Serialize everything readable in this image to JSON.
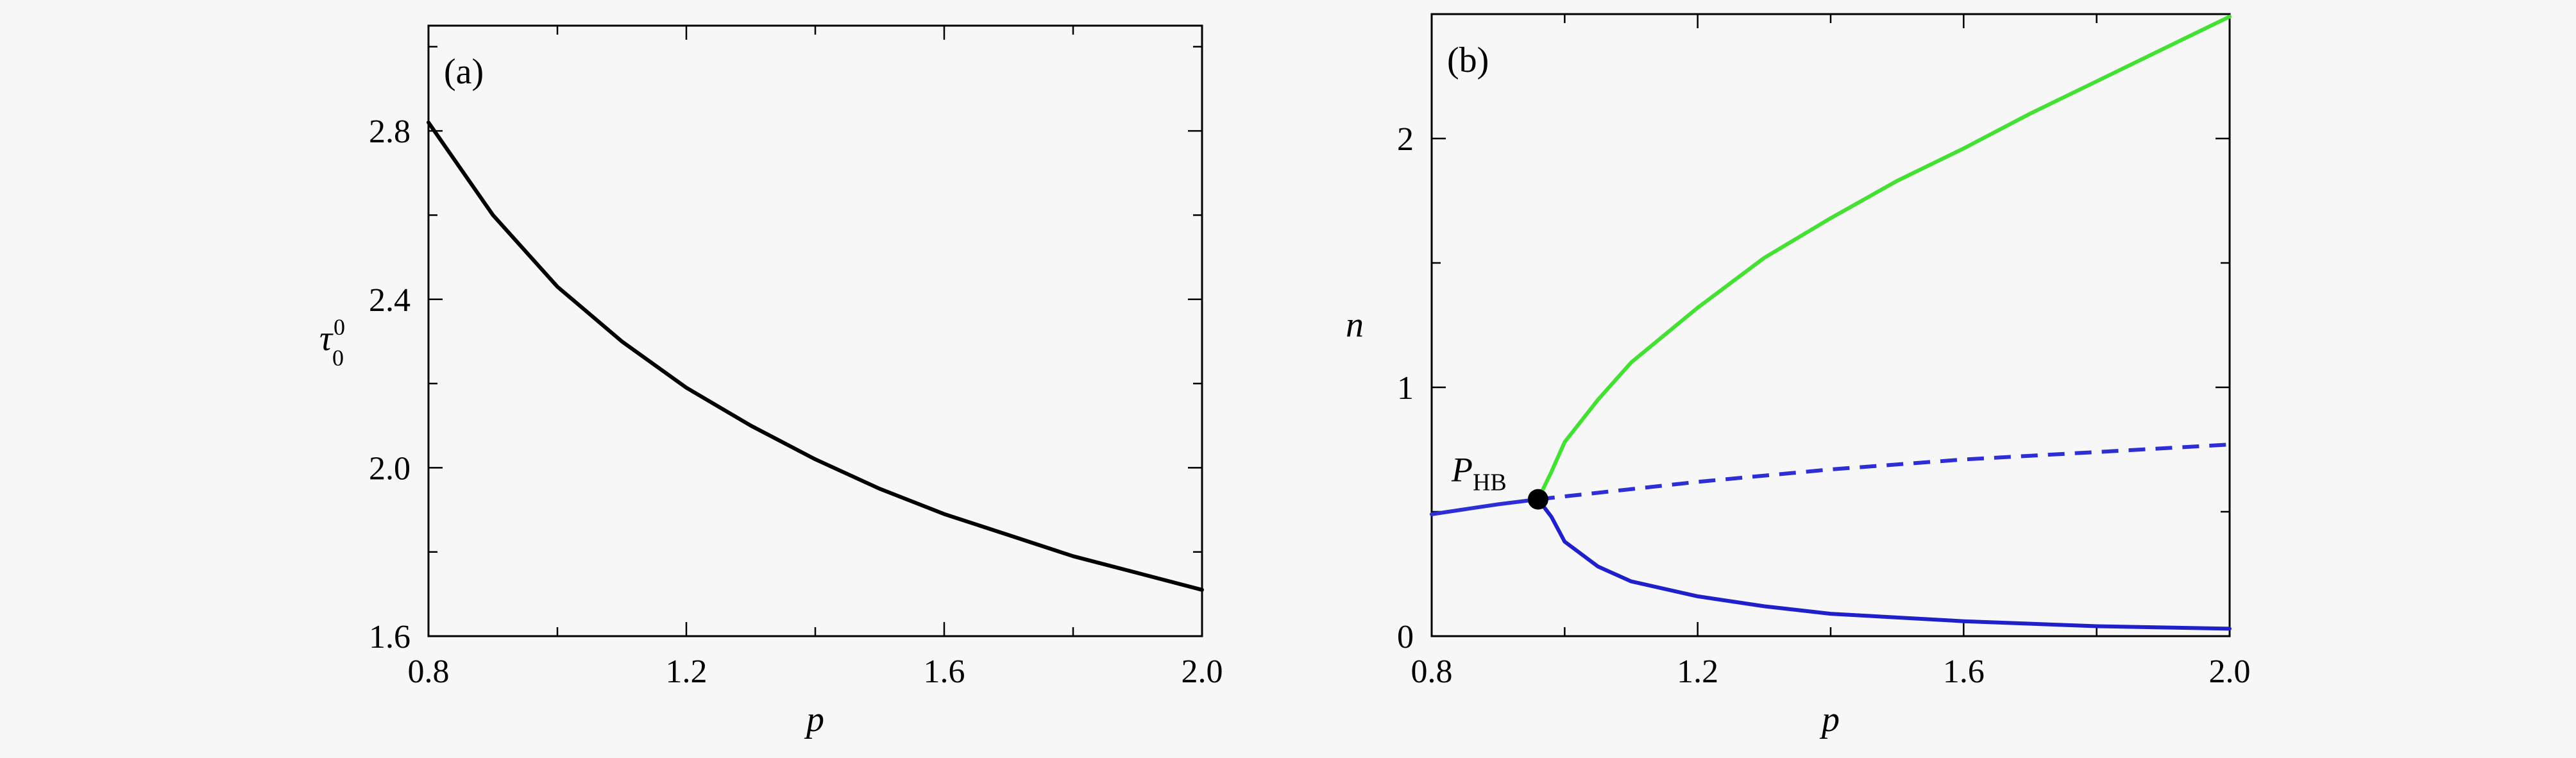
{
  "chart_data": [
    {
      "type": "line",
      "panel_label": "(a)",
      "xlabel": "p",
      "ylabel_main": "τ",
      "ylabel_sub": "0",
      "ylabel_sup": "0",
      "xlim": [
        0.8,
        2.0
      ],
      "ylim": [
        1.6,
        3.05
      ],
      "xticks": [
        0.8,
        1.2,
        1.6,
        2.0
      ],
      "xtick_labels": [
        "0.8",
        "1.2",
        "1.6",
        "2.0"
      ],
      "yticks": [
        1.6,
        2.0,
        2.4,
        2.8
      ],
      "ytick_labels": [
        "1.6",
        "2.0",
        "2.4",
        "2.8"
      ],
      "grid": false,
      "series": [
        {
          "color": "#000000",
          "dash": "solid",
          "x": [
            0.8,
            0.9,
            1.0,
            1.1,
            1.2,
            1.3,
            1.4,
            1.5,
            1.6,
            1.7,
            1.8,
            1.9,
            2.0
          ],
          "y": [
            2.82,
            2.6,
            2.43,
            2.3,
            2.19,
            2.1,
            2.02,
            1.95,
            1.89,
            1.84,
            1.79,
            1.75,
            1.71
          ]
        }
      ]
    },
    {
      "type": "line",
      "panel_label": "(b)",
      "xlabel": "p",
      "ylabel": "n",
      "xlim": [
        0.8,
        2.0
      ],
      "ylim": [
        0,
        2.5
      ],
      "xticks": [
        0.8,
        1.2,
        1.6,
        2.0
      ],
      "xtick_labels": [
        "0.8",
        "1.2",
        "1.6",
        "2.0"
      ],
      "yticks": [
        0,
        1,
        2
      ],
      "ytick_labels": [
        "0",
        "1",
        "2"
      ],
      "minor_yticks": [
        0.5,
        1.5
      ],
      "grid": false,
      "annotation": {
        "main": "P",
        "sub": "HB",
        "x": 0.96,
        "y": 0.55
      },
      "series": [
        {
          "color": "#2e2ed6",
          "dash": "solid",
          "x": [
            0.8,
            0.85,
            0.9,
            0.96
          ],
          "y": [
            0.49,
            0.51,
            0.53,
            0.55
          ]
        },
        {
          "color": "#2e2ed6",
          "dash": "dashed",
          "x": [
            0.96,
            1.2,
            1.4,
            1.6,
            1.8,
            2.0
          ],
          "y": [
            0.55,
            0.62,
            0.67,
            0.71,
            0.74,
            0.77
          ]
        },
        {
          "color": "#44e033",
          "dash": "solid",
          "x": [
            0.96,
            0.98,
            1.0,
            1.05,
            1.1,
            1.2,
            1.3,
            1.4,
            1.5,
            1.6,
            1.7,
            1.8,
            1.9,
            2.0
          ],
          "y": [
            0.55,
            0.66,
            0.78,
            0.95,
            1.1,
            1.32,
            1.52,
            1.68,
            1.83,
            1.96,
            2.1,
            2.23,
            2.36,
            2.49
          ]
        },
        {
          "color": "#1f1fcc",
          "dash": "solid",
          "x": [
            0.96,
            0.98,
            1.0,
            1.02,
            1.05,
            1.1,
            1.2,
            1.3,
            1.4,
            1.6,
            1.8,
            2.0
          ],
          "y": [
            0.55,
            0.48,
            0.38,
            0.34,
            0.28,
            0.22,
            0.16,
            0.12,
            0.09,
            0.06,
            0.04,
            0.03
          ]
        }
      ]
    }
  ]
}
